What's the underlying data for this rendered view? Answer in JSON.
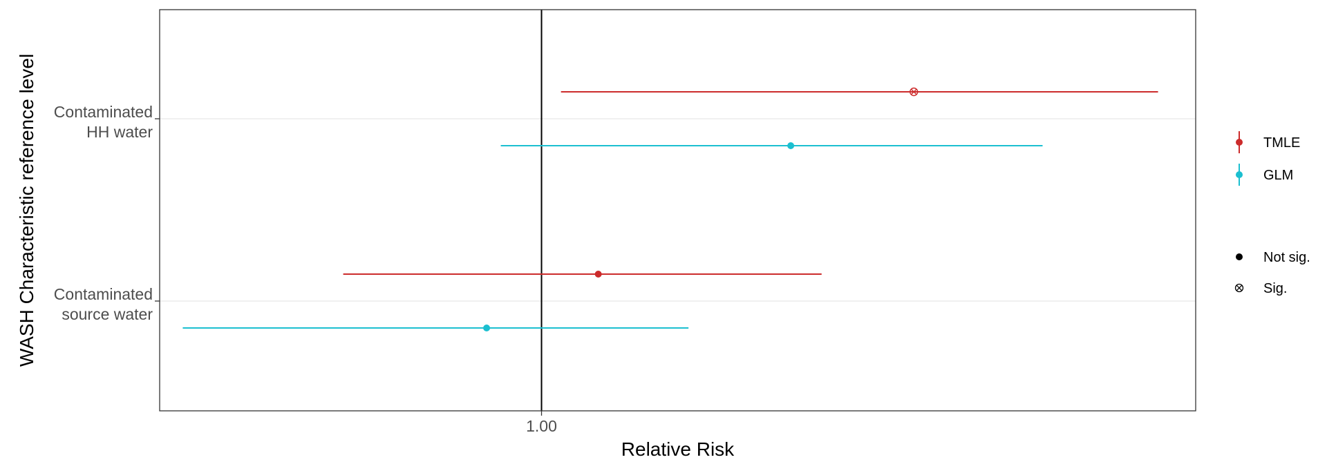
{
  "chart_data": {
    "type": "forest",
    "xlabel": "Relative Risk",
    "ylabel": "WASH Characteristic reference level",
    "x_scale": "log",
    "xlim": [
      0.56,
      2.7
    ],
    "x_ticks": [
      1.0
    ],
    "x_tick_labels": [
      "1.00"
    ],
    "reference_line": 1.0,
    "grid": "horizontal-major",
    "legend_position": "right",
    "categories": [
      {
        "lines": [
          "Contaminated",
          "HH water"
        ]
      },
      {
        "lines": [
          "Contaminated",
          "source water"
        ]
      }
    ],
    "series": [
      {
        "name": "TMLE",
        "color": "#cc2b2b",
        "points": [
          {
            "category": 0,
            "estimate": 1.76,
            "lower": 1.03,
            "upper": 2.55,
            "sig": true
          },
          {
            "category": 1,
            "estimate": 1.09,
            "lower": 0.74,
            "upper": 1.53,
            "sig": false
          }
        ]
      },
      {
        "name": "GLM",
        "color": "#1bbfd0",
        "points": [
          {
            "category": 0,
            "estimate": 1.46,
            "lower": 0.94,
            "upper": 2.14,
            "sig": false
          },
          {
            "category": 1,
            "estimate": 0.92,
            "lower": 0.58,
            "upper": 1.25,
            "sig": false
          }
        ]
      }
    ],
    "legend": {
      "series_title": "",
      "shape_entries": [
        {
          "label": "Not sig.",
          "shape": "filled-circle"
        },
        {
          "label": "Sig.",
          "shape": "circle-x"
        }
      ]
    }
  }
}
